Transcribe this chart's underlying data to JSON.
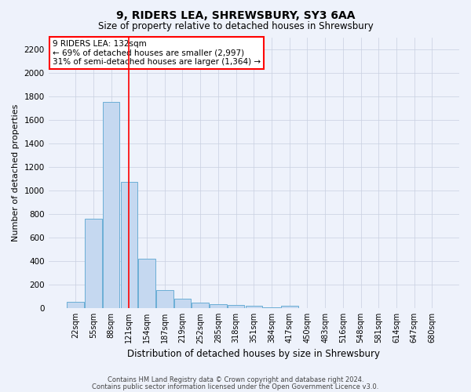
{
  "title": "9, RIDERS LEA, SHREWSBURY, SY3 6AA",
  "subtitle": "Size of property relative to detached houses in Shrewsbury",
  "xlabel": "Distribution of detached houses by size in Shrewsbury",
  "ylabel": "Number of detached properties",
  "footnote1": "Contains HM Land Registry data © Crown copyright and database right 2024.",
  "footnote2": "Contains public sector information licensed under the Open Government Licence v3.0.",
  "bar_labels": [
    "22sqm",
    "55sqm",
    "88sqm",
    "121sqm",
    "154sqm",
    "187sqm",
    "219sqm",
    "252sqm",
    "285sqm",
    "318sqm",
    "351sqm",
    "384sqm",
    "417sqm",
    "450sqm",
    "483sqm",
    "516sqm",
    "548sqm",
    "581sqm",
    "614sqm",
    "647sqm",
    "680sqm"
  ],
  "bar_values": [
    55,
    760,
    1750,
    1070,
    420,
    155,
    80,
    45,
    35,
    28,
    18,
    10,
    18,
    0,
    0,
    0,
    0,
    0,
    0,
    0,
    0
  ],
  "bar_color": "#c5d8f0",
  "bar_edge_color": "#6baed6",
  "vline_x": 3.0,
  "vline_color": "red",
  "ylim": [
    0,
    2300
  ],
  "yticks": [
    0,
    200,
    400,
    600,
    800,
    1000,
    1200,
    1400,
    1600,
    1800,
    2000,
    2200
  ],
  "annotation_text": "9 RIDERS LEA: 132sqm\n← 69% of detached houses are smaller (2,997)\n31% of semi-detached houses are larger (1,364) →",
  "annotation_box_color": "white",
  "annotation_box_edge": "red",
  "background_color": "#eef2fb"
}
